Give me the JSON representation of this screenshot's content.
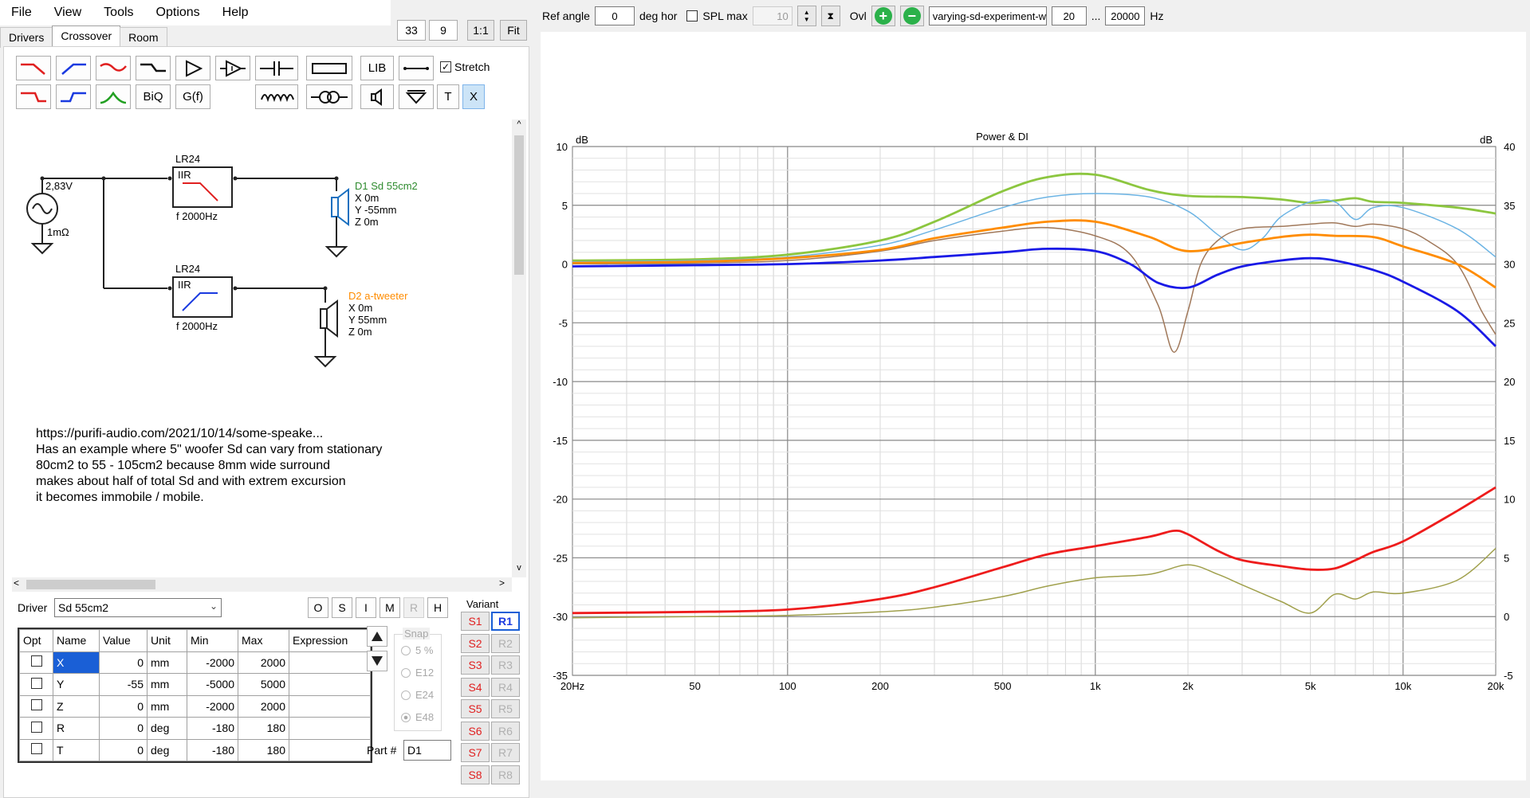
{
  "menu": [
    "File",
    "View",
    "Tools",
    "Options",
    "Help"
  ],
  "tabs": [
    "Drivers",
    "Crossover",
    "Room"
  ],
  "zoom_buttons": [
    "33",
    "9",
    "1:1",
    "Fit"
  ],
  "toolbar": {
    "lib": "LIB",
    "stretch": "Stretch",
    "biq": "BiQ",
    "gf": "G(f)",
    "t": "T",
    "x": "X"
  },
  "schematic": {
    "source_voltage": "2,83V",
    "source_impedance": "1mΩ",
    "filter1": {
      "type": "LR24",
      "kind": "IIR",
      "freq": "f   2000Hz"
    },
    "filter2": {
      "type": "LR24",
      "kind": "IIR",
      "freq": "f   2000Hz"
    },
    "driver1": {
      "name": "D1 Sd 55cm2",
      "x": "X 0m",
      "y": "Y -55mm",
      "z": "Z 0m",
      "color": "#2e8b2e"
    },
    "driver2": {
      "name": "D2 a-tweeter",
      "x": "X 0m",
      "y": "Y 55mm",
      "z": "Z 0m",
      "color": "#ff8c00"
    },
    "notes": [
      "https://purifi-audio.com/2021/10/14/some-speake...",
      "Has an example where 5\" woofer Sd can vary from stationary",
      "80cm2 to 55 - 105cm2 because 8mm wide surround",
      "makes about half of total Sd and with extrem excursion",
      "it becomes immobile / mobile."
    ]
  },
  "driver_select": {
    "label": "Driver",
    "value": "Sd 55cm2"
  },
  "mode_buttons": [
    "O",
    "S",
    "I",
    "M",
    "R",
    "H"
  ],
  "params": {
    "headers": [
      "Opt",
      "Name",
      "Value",
      "Unit",
      "Min",
      "Max",
      "Expression"
    ],
    "rows": [
      {
        "name": "X",
        "value": "0",
        "unit": "mm",
        "min": "-2000",
        "max": "2000"
      },
      {
        "name": "Y",
        "value": "-55",
        "unit": "mm",
        "min": "-5000",
        "max": "5000"
      },
      {
        "name": "Z",
        "value": "0",
        "unit": "mm",
        "min": "-2000",
        "max": "2000"
      },
      {
        "name": "R",
        "value": "0",
        "unit": "deg",
        "min": "-180",
        "max": "180"
      },
      {
        "name": "T",
        "value": "0",
        "unit": "deg",
        "min": "-180",
        "max": "180"
      }
    ]
  },
  "snap": {
    "label": "Snap",
    "options": [
      "5 %",
      "E12",
      "E24",
      "E48"
    ]
  },
  "part": {
    "label": "Part #",
    "value": "D1"
  },
  "variant": {
    "label": "Variant",
    "s": [
      "S1",
      "S2",
      "S3",
      "S4",
      "S5",
      "S6",
      "S7",
      "S8"
    ],
    "r": [
      "R1",
      "R2",
      "R3",
      "R4",
      "R5",
      "R6",
      "R7",
      "R8"
    ]
  },
  "top_controls": {
    "ref_angle_label": "Ref angle",
    "ref_angle": "0",
    "deg_hor": "deg hor",
    "spl_max_label": "SPL max",
    "spl_max": "10",
    "ovl": "Ovl",
    "project": "varying-sd-experiment-w",
    "f_min": "20",
    "dots": "...",
    "f_max": "20000",
    "hz": "Hz"
  },
  "chart_data": {
    "type": "line",
    "title": "Power & DI",
    "xscale": "log",
    "xlim": [
      20,
      20000
    ],
    "xticks": [
      20,
      50,
      100,
      200,
      500,
      1000,
      2000,
      5000,
      10000,
      20000
    ],
    "xticklabels": [
      "20Hz",
      "50",
      "100",
      "200",
      "500",
      "1k",
      "2k",
      "5k",
      "10k",
      "20k"
    ],
    "ylabel_left": "dB",
    "ylim_left": [
      -35,
      10
    ],
    "yticks_left": [
      10,
      5,
      0,
      -5,
      -10,
      -15,
      -20,
      -25,
      -30,
      -35
    ],
    "ylabel_right": "dB",
    "ylim_right": [
      -5,
      40
    ],
    "yticks_right": [
      40,
      35,
      30,
      25,
      20,
      15,
      10,
      5,
      0,
      -5
    ],
    "grid": true,
    "series": [
      {
        "color": "#8cc63f",
        "axis": "left",
        "x": [
          20,
          50,
          100,
          200,
          300,
          500,
          700,
          1000,
          1500,
          2000,
          3000,
          4000,
          5000,
          6000,
          7000,
          8000,
          10000,
          15000,
          20000
        ],
        "y": [
          0.3,
          0.4,
          0.8,
          2,
          3.6,
          6.2,
          7.4,
          7.6,
          6.3,
          5.8,
          5.7,
          5.5,
          5.2,
          5.4,
          5.6,
          5.3,
          5.2,
          4.8,
          4.3
        ]
      },
      {
        "color": "#6cb4e4",
        "axis": "left",
        "x": [
          20,
          50,
          100,
          200,
          300,
          500,
          700,
          1000,
          1500,
          2000,
          2500,
          3000,
          3500,
          4000,
          5000,
          6000,
          7000,
          8000,
          10000,
          15000,
          20000
        ],
        "y": [
          0.2,
          0.3,
          0.6,
          1.6,
          2.9,
          4.8,
          5.7,
          6.0,
          5.7,
          4.5,
          2.5,
          1.2,
          2.2,
          4,
          5.3,
          5.3,
          3.8,
          4.8,
          4.8,
          3,
          0.6
        ]
      },
      {
        "color": "#a0785a",
        "axis": "left",
        "x": [
          20,
          50,
          100,
          200,
          300,
          500,
          700,
          1000,
          1300,
          1600,
          1800,
          2000,
          2200,
          2500,
          3000,
          4000,
          5000,
          6000,
          7000,
          8000,
          10000,
          12000,
          15000,
          18000,
          20000
        ],
        "y": [
          0.1,
          0.1,
          0.3,
          1.1,
          2,
          2.8,
          3.1,
          2.4,
          0.8,
          -3.5,
          -7.5,
          -4,
          0,
          2,
          3,
          3.2,
          3.4,
          3.5,
          3.2,
          3.4,
          3,
          2,
          0,
          -4,
          -6
        ]
      },
      {
        "color": "#ff8c00",
        "axis": "left",
        "x": [
          20,
          50,
          100,
          200,
          300,
          500,
          700,
          1000,
          1500,
          2000,
          3000,
          4000,
          5000,
          6000,
          8000,
          10000,
          15000,
          20000
        ],
        "y": [
          0.1,
          0.2,
          0.5,
          1.2,
          2.2,
          3.1,
          3.6,
          3.6,
          2.3,
          1.1,
          1.8,
          2.3,
          2.5,
          2.4,
          2.3,
          1.5,
          0,
          -2
        ]
      },
      {
        "color": "#1a1ae6",
        "axis": "left",
        "x": [
          20,
          50,
          100,
          200,
          300,
          500,
          700,
          1000,
          1300,
          1600,
          2000,
          2500,
          3000,
          4000,
          5000,
          6000,
          8000,
          10000,
          15000,
          20000
        ],
        "y": [
          -0.2,
          -0.1,
          0,
          0.3,
          0.6,
          1.0,
          1.3,
          1.1,
          0,
          -1.6,
          -2.0,
          -0.9,
          -0.2,
          0.3,
          0.5,
          0.3,
          -0.5,
          -1.5,
          -4,
          -7
        ]
      },
      {
        "color": "#ee1c1c",
        "axis": "right",
        "x": [
          20,
          50,
          100,
          200,
          300,
          500,
          700,
          1000,
          1500,
          1800,
          2000,
          2500,
          3000,
          4000,
          5000,
          6000,
          7000,
          8000,
          10000,
          15000,
          20000
        ],
        "y": [
          0.3,
          0.4,
          0.6,
          1.5,
          2.5,
          4.2,
          5.3,
          6,
          6.8,
          7.3,
          7,
          5.6,
          4.8,
          4.3,
          4,
          4.1,
          4.8,
          5.5,
          6.4,
          9,
          11
        ]
      },
      {
        "color": "#a0a04c",
        "axis": "right",
        "x": [
          20,
          50,
          100,
          200,
          300,
          500,
          700,
          1000,
          1500,
          2000,
          2500,
          3000,
          4000,
          5000,
          6000,
          7000,
          8000,
          10000,
          15000,
          20000
        ],
        "y": [
          -0.1,
          0,
          0.1,
          0.4,
          0.8,
          1.7,
          2.6,
          3.3,
          3.6,
          4.4,
          3.6,
          2.7,
          1.3,
          0.3,
          1.9,
          1.5,
          2.1,
          2,
          3.1,
          5.8
        ]
      }
    ]
  }
}
